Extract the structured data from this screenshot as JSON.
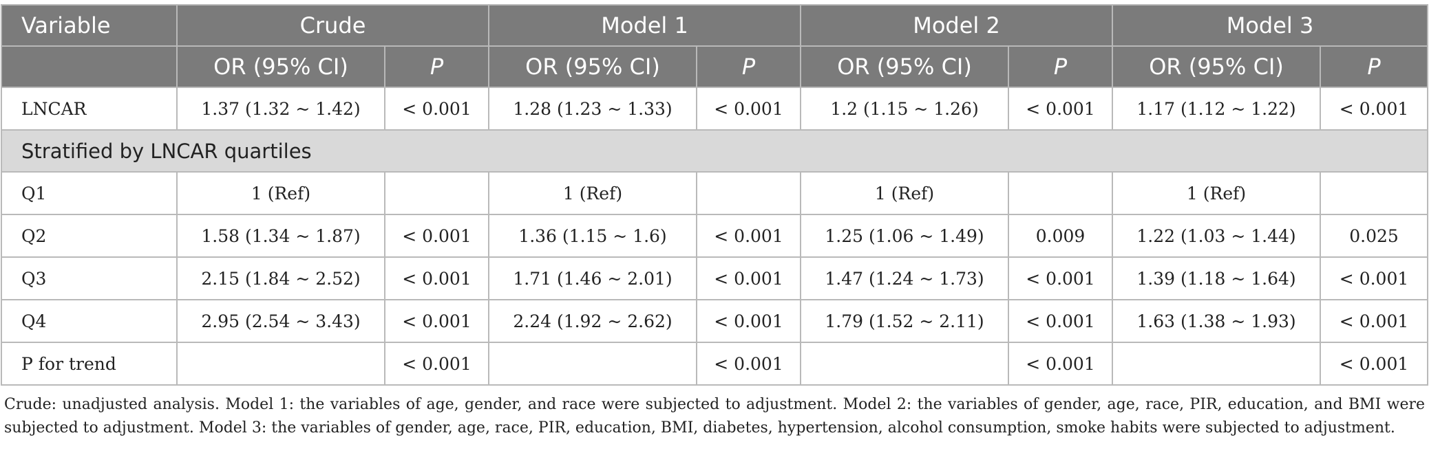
{
  "header": {
    "variable": "Variable",
    "groups": [
      "Crude",
      "Model 1",
      "Model 2",
      "Model 3"
    ],
    "or_label": "OR (95% CI)",
    "p_label": "P"
  },
  "rows": [
    {
      "label": "LNCAR",
      "cells": [
        "1.37 (1.32 ~ 1.42)",
        "< 0.001",
        "1.28 (1.23 ~ 1.33)",
        "< 0.001",
        "1.2 (1.15 ~ 1.26)",
        "< 0.001",
        "1.17 (1.12 ~ 1.22)",
        "< 0.001"
      ]
    }
  ],
  "section_title": "Stratified by LNCAR quartiles",
  "strat_rows": [
    {
      "label": "Q1",
      "cells": [
        "1 (Ref)",
        "",
        "1 (Ref)",
        "",
        "1 (Ref)",
        "",
        "1 (Ref)",
        ""
      ]
    },
    {
      "label": "Q2",
      "cells": [
        "1.58 (1.34 ~ 1.87)",
        "< 0.001",
        "1.36 (1.15 ~ 1.6)",
        "< 0.001",
        "1.25 (1.06 ~ 1.49)",
        "0.009",
        "1.22 (1.03 ~ 1.44)",
        "0.025"
      ]
    },
    {
      "label": "Q3",
      "cells": [
        "2.15 (1.84 ~ 2.52)",
        "< 0.001",
        "1.71 (1.46 ~ 2.01)",
        "< 0.001",
        "1.47 (1.24 ~ 1.73)",
        "< 0.001",
        "1.39 (1.18 ~ 1.64)",
        "< 0.001"
      ]
    },
    {
      "label": "Q4",
      "cells": [
        "2.95 (2.54 ~ 3.43)",
        "< 0.001",
        "2.24 (1.92 ~ 2.62)",
        "< 0.001",
        "1.79 (1.52 ~ 2.11)",
        "< 0.001",
        "1.63 (1.38 ~ 1.93)",
        "< 0.001"
      ]
    },
    {
      "label": "P for trend",
      "cells": [
        "",
        "< 0.001",
        "",
        "< 0.001",
        "",
        "< 0.001",
        "",
        "< 0.001"
      ]
    }
  ],
  "footnote": "Crude: unadjusted analysis. Model 1: the variables of age, gender, and race were subjected to adjustment. Model 2: the variables of gender, age, race, PIR, education, and BMI were subjected to adjustment. Model 3: the variables of gender, age, race, PIR, education, BMI, diabetes, hypertension, alcohol consumption, smoke habits were subjected to adjustment."
}
